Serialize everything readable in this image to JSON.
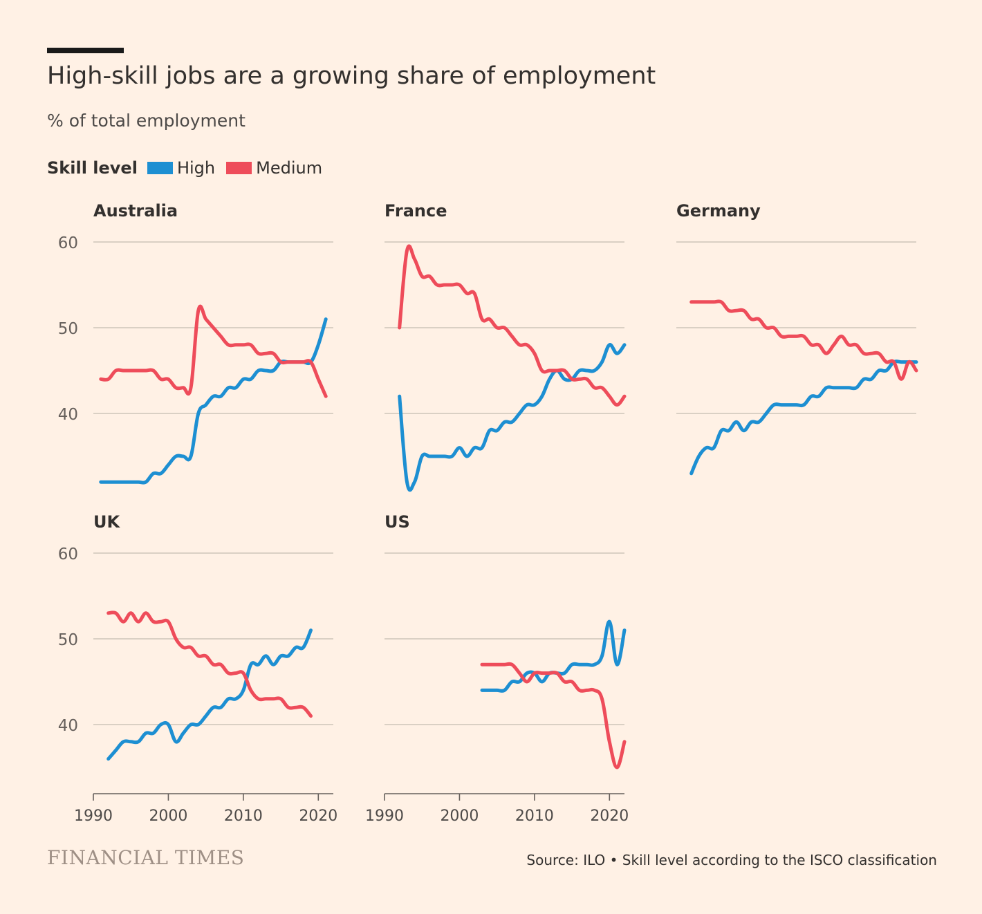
{
  "header": {
    "title": "High-skill jobs are a growing share of employment",
    "subtitle": "% of total employment"
  },
  "legend": {
    "title": "Skill level",
    "items": [
      {
        "label": "High",
        "color": "#1d8fd2"
      },
      {
        "label": "Medium",
        "color": "#ee4c5a"
      }
    ]
  },
  "footer": {
    "logo": "FINANCIAL TIMES",
    "source": "Source: ILO • Skill level according to the ISCO classification"
  },
  "chart_data": {
    "type": "line",
    "title": "High-skill jobs are a growing share of employment",
    "ylabel": "% of total employment",
    "xlim": [
      1990,
      2022
    ],
    "ylim": [
      32,
      60
    ],
    "yticks": [
      40,
      50,
      60
    ],
    "xticks": [
      1990,
      2000,
      2010,
      2020
    ],
    "grid": true,
    "panels": [
      {
        "name": "Australia",
        "series": [
          {
            "name": "High",
            "x": [
              1991,
              1992,
              1993,
              1994,
              1995,
              1996,
              1997,
              1998,
              1999,
              2000,
              2001,
              2002,
              2003,
              2004,
              2005,
              2006,
              2007,
              2008,
              2009,
              2010,
              2011,
              2012,
              2013,
              2014,
              2015,
              2016,
              2017,
              2018,
              2019,
              2020,
              2021
            ],
            "values": [
              32,
              32,
              32,
              32,
              32,
              32,
              32,
              33,
              33,
              34,
              35,
              35,
              35,
              40,
              41,
              42,
              42,
              43,
              43,
              44,
              44,
              45,
              45,
              45,
              46,
              46,
              46,
              46,
              46,
              48,
              51
            ]
          },
          {
            "name": "Medium",
            "x": [
              1991,
              1992,
              1993,
              1994,
              1995,
              1996,
              1997,
              1998,
              1999,
              2000,
              2001,
              2002,
              2003,
              2004,
              2005,
              2006,
              2007,
              2008,
              2009,
              2010,
              2011,
              2012,
              2013,
              2014,
              2015,
              2016,
              2017,
              2018,
              2019,
              2020,
              2021
            ],
            "values": [
              44,
              44,
              45,
              45,
              45,
              45,
              45,
              45,
              44,
              44,
              43,
              43,
              43,
              52,
              51,
              50,
              49,
              48,
              48,
              48,
              48,
              47,
              47,
              47,
              46,
              46,
              46,
              46,
              46,
              44,
              42
            ]
          }
        ]
      },
      {
        "name": "France",
        "series": [
          {
            "name": "High",
            "x": [
              1992,
              1993,
              1994,
              1995,
              1996,
              1997,
              1998,
              1999,
              2000,
              2001,
              2002,
              2003,
              2004,
              2005,
              2006,
              2007,
              2008,
              2009,
              2010,
              2011,
              2012,
              2013,
              2014,
              2015,
              2016,
              2017,
              2018,
              2019,
              2020,
              2021,
              2022
            ],
            "values": [
              42,
              32,
              32,
              35,
              35,
              35,
              35,
              35,
              36,
              35,
              36,
              36,
              38,
              38,
              39,
              39,
              40,
              41,
              41,
              42,
              44,
              45,
              44,
              44,
              45,
              45,
              45,
              46,
              48,
              47,
              48
            ]
          },
          {
            "name": "Medium",
            "x": [
              1992,
              1993,
              1994,
              1995,
              1996,
              1997,
              1998,
              1999,
              2000,
              2001,
              2002,
              2003,
              2004,
              2005,
              2006,
              2007,
              2008,
              2009,
              2010,
              2011,
              2012,
              2013,
              2014,
              2015,
              2016,
              2017,
              2018,
              2019,
              2020,
              2021,
              2022
            ],
            "values": [
              50,
              59,
              58,
              56,
              56,
              55,
              55,
              55,
              55,
              54,
              54,
              51,
              51,
              50,
              50,
              49,
              48,
              48,
              47,
              45,
              45,
              45,
              45,
              44,
              44,
              44,
              43,
              43,
              42,
              41,
              42
            ]
          }
        ]
      },
      {
        "name": "Germany",
        "series": [
          {
            "name": "High",
            "x": [
              1992,
              1993,
              1994,
              1995,
              1996,
              1997,
              1998,
              1999,
              2000,
              2001,
              2002,
              2003,
              2004,
              2005,
              2006,
              2007,
              2008,
              2009,
              2010,
              2011,
              2012,
              2013,
              2014,
              2015,
              2016,
              2017,
              2018,
              2019,
              2020,
              2021,
              2022
            ],
            "values": [
              33,
              35,
              36,
              36,
              38,
              38,
              39,
              38,
              39,
              39,
              40,
              41,
              41,
              41,
              41,
              41,
              42,
              42,
              43,
              43,
              43,
              43,
              43,
              44,
              44,
              45,
              45,
              46,
              46,
              46,
              46
            ]
          },
          {
            "name": "Medium",
            "x": [
              1992,
              1993,
              1994,
              1995,
              1996,
              1997,
              1998,
              1999,
              2000,
              2001,
              2002,
              2003,
              2004,
              2005,
              2006,
              2007,
              2008,
              2009,
              2010,
              2011,
              2012,
              2013,
              2014,
              2015,
              2016,
              2017,
              2018,
              2019,
              2020,
              2021,
              2022
            ],
            "values": [
              53,
              53,
              53,
              53,
              53,
              52,
              52,
              52,
              51,
              51,
              50,
              50,
              49,
              49,
              49,
              49,
              48,
              48,
              47,
              48,
              49,
              48,
              48,
              47,
              47,
              47,
              46,
              46,
              44,
              46,
              45
            ]
          }
        ]
      },
      {
        "name": "UK",
        "series": [
          {
            "name": "High",
            "x": [
              1992,
              1993,
              1994,
              1995,
              1996,
              1997,
              1998,
              1999,
              2000,
              2001,
              2002,
              2003,
              2004,
              2005,
              2006,
              2007,
              2008,
              2009,
              2010,
              2011,
              2012,
              2013,
              2014,
              2015,
              2016,
              2017,
              2018,
              2019
            ],
            "values": [
              36,
              37,
              38,
              38,
              38,
              39,
              39,
              40,
              40,
              38,
              39,
              40,
              40,
              41,
              42,
              42,
              43,
              43,
              44,
              47,
              47,
              48,
              47,
              48,
              48,
              49,
              49,
              51
            ]
          },
          {
            "name": "Medium",
            "x": [
              1992,
              1993,
              1994,
              1995,
              1996,
              1997,
              1998,
              1999,
              2000,
              2001,
              2002,
              2003,
              2004,
              2005,
              2006,
              2007,
              2008,
              2009,
              2010,
              2011,
              2012,
              2013,
              2014,
              2015,
              2016,
              2017,
              2018,
              2019
            ],
            "values": [
              53,
              53,
              52,
              53,
              52,
              53,
              52,
              52,
              52,
              50,
              49,
              49,
              48,
              48,
              47,
              47,
              46,
              46,
              46,
              44,
              43,
              43,
              43,
              43,
              42,
              42,
              42,
              41
            ]
          }
        ]
      },
      {
        "name": "US",
        "series": [
          {
            "name": "High",
            "x": [
              2003,
              2004,
              2005,
              2006,
              2007,
              2008,
              2009,
              2010,
              2011,
              2012,
              2013,
              2014,
              2015,
              2016,
              2017,
              2018,
              2019,
              2020,
              2021,
              2022
            ],
            "values": [
              44,
              44,
              44,
              44,
              45,
              45,
              46,
              46,
              45,
              46,
              46,
              46,
              47,
              47,
              47,
              47,
              48,
              52,
              47,
              51
            ]
          },
          {
            "name": "Medium",
            "x": [
              2003,
              2004,
              2005,
              2006,
              2007,
              2008,
              2009,
              2010,
              2011,
              2012,
              2013,
              2014,
              2015,
              2016,
              2017,
              2018,
              2019,
              2020,
              2021,
              2022
            ],
            "values": [
              47,
              47,
              47,
              47,
              47,
              46,
              45,
              46,
              46,
              46,
              46,
              45,
              45,
              44,
              44,
              44,
              43,
              38,
              35,
              38
            ]
          }
        ]
      }
    ]
  }
}
